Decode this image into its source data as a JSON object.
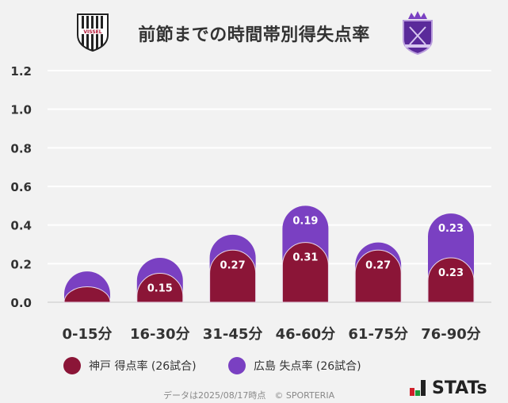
{
  "title": "前節までの時間帯別得失点率",
  "logos": {
    "home": "VISSEL",
    "away": "SANFRECCE HIROSHIMA"
  },
  "colors": {
    "kobe": "#8b1537",
    "hiroshima": "#7a40c2"
  },
  "chart_data": {
    "type": "bar",
    "stacked": true,
    "title": "前節までの時間帯別得失点率",
    "categories": [
      "0-15分",
      "16-30分",
      "31-45分",
      "46-60分",
      "61-75分",
      "76-90分"
    ],
    "series": [
      {
        "name": "神戸 得点率 (26試合)",
        "values": [
          0.08,
          0.15,
          0.27,
          0.31,
          0.27,
          0.23
        ],
        "labels": [
          "",
          "0.15",
          "0.27",
          "0.31",
          "0.27",
          "0.23"
        ]
      },
      {
        "name": "広島 失点率 (26試合)",
        "values": [
          0.08,
          0.08,
          0.08,
          0.19,
          0.04,
          0.23
        ],
        "labels": [
          "",
          "",
          "",
          "0.19",
          "",
          "0.23"
        ]
      }
    ],
    "yticks": [
      "0.0",
      "0.2",
      "0.4",
      "0.6",
      "0.8",
      "1.0",
      "1.2"
    ],
    "ylim": [
      0,
      1.2
    ],
    "grid": true,
    "legend": "bottom"
  },
  "footer": "データは2025/08/17時点　© SPORTERIA",
  "brand": "STATs"
}
